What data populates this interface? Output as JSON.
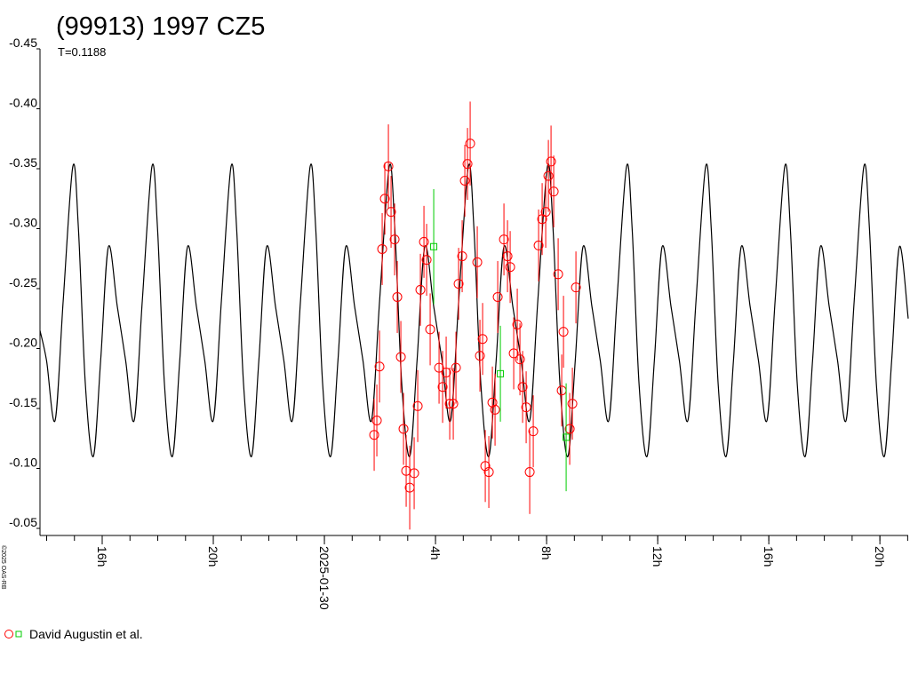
{
  "chart_data": {
    "type": "lightcurve",
    "title": "(99913) 1997 CZ5",
    "subtitle": "T=0.1188",
    "credit": "©2025 OAS-RB",
    "y_inverted": true,
    "ylim": [
      -0.45,
      -0.05
    ],
    "yticks": [
      -0.45,
      {
        "value": -0.4,
        "label": "-0.40"
      },
      -0.35,
      {
        "value": -0.3,
        "label": "-0.30"
      },
      -0.25,
      {
        "value": -0.2,
        "label": "-0.20"
      },
      -0.15,
      {
        "value": -0.1,
        "label": "-0.10"
      },
      -0.05
    ],
    "xlim": [
      -10.24,
      21.02
    ],
    "xticks": [
      {
        "value": -8,
        "label": "16h"
      },
      {
        "value": -4,
        "label": "20h"
      },
      {
        "value": 0,
        "label": "2025-01-30"
      },
      {
        "value": 4,
        "label": "4h"
      },
      {
        "value": 8,
        "label": "8h"
      },
      {
        "value": 12,
        "label": "12h"
      },
      {
        "value": 16,
        "label": "16h"
      },
      {
        "value": 20,
        "label": "20h"
      }
    ],
    "xminorticks": [
      -10,
      -9,
      -8,
      -7,
      -6,
      -5,
      -4,
      -3,
      -2,
      -1,
      0,
      1,
      2,
      3,
      4,
      5,
      6,
      7,
      8,
      9,
      10,
      11,
      12,
      13,
      14,
      15,
      16,
      17,
      18,
      19,
      20,
      21
    ],
    "model": {
      "color": "#000000",
      "x": [
        -10.24,
        -10.004,
        -9.696,
        -9.404,
        -9.056,
        -8.856,
        -8.606,
        -8.32,
        -8.056,
        -7.776,
        -7.456,
        -7.156,
        -6.848,
        -6.556,
        -6.208,
        -6.008,
        -5.758,
        -5.472,
        -5.208,
        -4.928,
        -4.608,
        -4.308,
        -4.0,
        -3.708,
        -3.36,
        -3.16,
        -2.91,
        -2.624,
        -2.36,
        -2.08,
        -1.76,
        -1.46,
        -1.152,
        -0.86,
        -0.512,
        -0.312,
        -0.062,
        0.224,
        0.488,
        0.768,
        1.088,
        1.388,
        1.696,
        1.988,
        2.336,
        2.536,
        2.786,
        3.072,
        3.336,
        3.616,
        3.936,
        4.236,
        4.544,
        4.836,
        5.184,
        5.384,
        5.634,
        5.92,
        6.184,
        6.464,
        6.784,
        7.084,
        7.392,
        7.684,
        8.032,
        8.232,
        8.482,
        8.768,
        9.032,
        9.312,
        9.632,
        9.932,
        10.24,
        10.532,
        10.88,
        11.08,
        11.33,
        11.616,
        11.88,
        12.16,
        12.48,
        12.78,
        13.088,
        13.38,
        13.728,
        13.928,
        14.178,
        14.464,
        14.728,
        15.008,
        15.328,
        15.628,
        15.936,
        16.228,
        16.576,
        16.776,
        17.026,
        17.312,
        17.576,
        17.856,
        18.176,
        18.476,
        18.784,
        19.076,
        19.424,
        19.624,
        19.874,
        20.16,
        20.424,
        20.704,
        21.02
      ],
      "values": [
        -0.215,
        -0.19,
        -0.14,
        -0.24,
        -0.352,
        -0.3,
        -0.17,
        -0.11,
        -0.19,
        -0.285,
        -0.235,
        -0.19,
        -0.14,
        -0.24,
        -0.352,
        -0.3,
        -0.17,
        -0.11,
        -0.19,
        -0.285,
        -0.235,
        -0.19,
        -0.14,
        -0.24,
        -0.352,
        -0.3,
        -0.17,
        -0.11,
        -0.19,
        -0.285,
        -0.235,
        -0.19,
        -0.14,
        -0.24,
        -0.352,
        -0.3,
        -0.17,
        -0.11,
        -0.19,
        -0.285,
        -0.235,
        -0.19,
        -0.14,
        -0.24,
        -0.352,
        -0.3,
        -0.17,
        -0.11,
        -0.19,
        -0.285,
        -0.235,
        -0.19,
        -0.14,
        -0.24,
        -0.352,
        -0.3,
        -0.17,
        -0.11,
        -0.19,
        -0.285,
        -0.235,
        -0.19,
        -0.14,
        -0.24,
        -0.352,
        -0.3,
        -0.17,
        -0.11,
        -0.19,
        -0.285,
        -0.235,
        -0.19,
        -0.14,
        -0.24,
        -0.352,
        -0.3,
        -0.17,
        -0.11,
        -0.19,
        -0.285,
        -0.235,
        -0.19,
        -0.14,
        -0.24,
        -0.352,
        -0.3,
        -0.17,
        -0.11,
        -0.19,
        -0.285,
        -0.235,
        -0.19,
        -0.14,
        -0.24,
        -0.352,
        -0.3,
        -0.17,
        -0.11,
        -0.19,
        -0.285,
        -0.235,
        -0.19,
        -0.14,
        -0.24,
        -0.352,
        -0.3,
        -0.17,
        -0.11,
        -0.19,
        -0.285,
        -0.225
      ]
    },
    "series": [
      {
        "name": "David Augustin et al.",
        "color": "#ff0000",
        "marker": "circle",
        "x": [
          1.792,
          1.888,
          1.984,
          2.08,
          2.176,
          2.304,
          2.4,
          2.528,
          2.624,
          2.752,
          2.848,
          2.944,
          3.072,
          3.232,
          3.36,
          3.456,
          3.584,
          3.68,
          3.808,
          4.128,
          4.256,
          4.384,
          4.512,
          4.64,
          4.736,
          4.832,
          4.96,
          5.056,
          5.152,
          5.248,
          5.504,
          5.6,
          5.696,
          5.792,
          5.92,
          6.048,
          6.144,
          6.24,
          6.464,
          6.592,
          6.688,
          6.816,
          6.944,
          7.04,
          7.136,
          7.264,
          7.392,
          7.52,
          7.712,
          7.84,
          7.968,
          8.064,
          8.16,
          8.256,
          8.416,
          8.544,
          8.608,
          8.832,
          8.928,
          9.056
        ],
        "values": [
          -0.128,
          -0.14,
          -0.185,
          -0.283,
          -0.325,
          -0.352,
          -0.314,
          -0.291,
          -0.243,
          -0.193,
          -0.133,
          -0.098,
          -0.084,
          -0.096,
          -0.152,
          -0.249,
          -0.289,
          -0.274,
          -0.216,
          -0.184,
          -0.168,
          -0.18,
          -0.154,
          -0.154,
          -0.184,
          -0.254,
          -0.277,
          -0.34,
          -0.354,
          -0.371,
          -0.272,
          -0.194,
          -0.208,
          -0.102,
          -0.097,
          -0.155,
          -0.149,
          -0.243,
          -0.291,
          -0.277,
          -0.268,
          -0.196,
          -0.22,
          -0.191,
          -0.168,
          -0.151,
          -0.097,
          -0.131,
          -0.286,
          -0.308,
          -0.314,
          -0.344,
          -0.356,
          -0.331,
          -0.262,
          -0.165,
          -0.214,
          -0.133,
          -0.154,
          -0.251
        ],
        "errors": [
          0.03,
          0.03,
          0.03,
          0.03,
          0.03,
          0.035,
          0.03,
          0.03,
          0.03,
          0.03,
          0.03,
          0.03,
          0.035,
          0.03,
          0.03,
          0.03,
          0.03,
          0.03,
          0.03,
          0.03,
          0.03,
          0.03,
          0.03,
          0.03,
          0.03,
          0.03,
          0.03,
          0.03,
          0.03,
          0.035,
          0.03,
          0.03,
          0.03,
          0.03,
          0.03,
          0.03,
          0.03,
          0.03,
          0.03,
          0.03,
          0.03,
          0.03,
          0.03,
          0.03,
          0.03,
          0.03,
          0.035,
          0.03,
          0.03,
          0.03,
          0.03,
          0.03,
          0.03,
          0.03,
          0.03,
          0.03,
          0.03,
          0.03,
          0.03,
          0.03
        ]
      },
      {
        "color": "#00cc00",
        "marker": "square",
        "x": [
          3.936,
          6.336,
          8.704
        ],
        "values": [
          -0.285,
          -0.179,
          -0.126
        ],
        "errors": [
          0.048,
          0.04,
          0.045
        ]
      }
    ]
  }
}
